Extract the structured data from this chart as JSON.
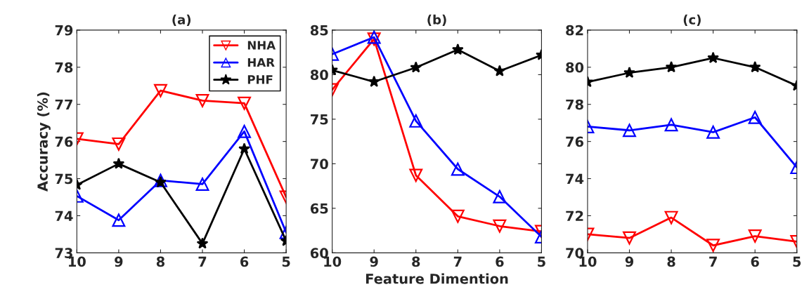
{
  "chart_data": [
    {
      "type": "line",
      "title": "(a)",
      "ylabel": "Accuracy (%)",
      "x": [
        10,
        9,
        8,
        7,
        6,
        5
      ],
      "xlim": [
        10,
        5
      ],
      "xticks": [
        10,
        9,
        8,
        7,
        6,
        5
      ],
      "ylim": [
        73,
        79
      ],
      "yticks": [
        73,
        74,
        75,
        76,
        77,
        78,
        79
      ],
      "grid": false,
      "legend": "top right",
      "series": [
        {
          "name": "NHA",
          "color": "#ff0000",
          "marker": "triangle_down",
          "values": [
            76.07,
            75.93,
            77.37,
            77.1,
            77.03,
            74.5
          ]
        },
        {
          "name": "HAR",
          "color": "#0000ff",
          "marker": "triangle",
          "values": [
            74.53,
            73.88,
            74.95,
            74.85,
            76.27,
            73.55
          ]
        },
        {
          "name": "PHF",
          "color": "#000000",
          "marker": "star",
          "values": [
            74.83,
            75.4,
            74.9,
            73.25,
            75.8,
            73.32
          ]
        }
      ]
    },
    {
      "type": "line",
      "title": "(b)",
      "xlabel": "Feature Dimention",
      "x": [
        10,
        9,
        8,
        7,
        6,
        5
      ],
      "xlim": [
        10,
        5
      ],
      "xticks": [
        10,
        9,
        8,
        7,
        6,
        5
      ],
      "ylim": [
        60,
        85
      ],
      "yticks": [
        60,
        65,
        70,
        75,
        80,
        85
      ],
      "grid": false,
      "series": [
        {
          "color": "#ff0000",
          "marker": "triangle_down",
          "values": [
            78.3,
            84.0,
            68.7,
            64.1,
            63.0,
            62.4
          ]
        },
        {
          "color": "#0000ff",
          "marker": "triangle",
          "values": [
            82.3,
            84.2,
            74.8,
            69.4,
            66.3,
            61.8
          ]
        },
        {
          "color": "#000000",
          "marker": "star",
          "values": [
            80.5,
            79.2,
            80.8,
            82.8,
            80.4,
            82.2
          ]
        }
      ]
    },
    {
      "type": "line",
      "title": "(c)",
      "x": [
        10,
        9,
        8,
        7,
        6,
        5
      ],
      "xlim": [
        10,
        5
      ],
      "xticks": [
        10,
        9,
        8,
        7,
        6,
        5
      ],
      "ylim": [
        70,
        82
      ],
      "yticks": [
        70,
        72,
        74,
        76,
        78,
        80,
        82
      ],
      "grid": false,
      "series": [
        {
          "color": "#ff0000",
          "marker": "triangle_down",
          "values": [
            71.0,
            70.8,
            71.9,
            70.4,
            70.9,
            70.6
          ]
        },
        {
          "color": "#0000ff",
          "marker": "triangle",
          "values": [
            76.8,
            76.6,
            76.9,
            76.5,
            77.3,
            74.6
          ]
        },
        {
          "color": "#000000",
          "marker": "star",
          "values": [
            79.2,
            79.7,
            80.0,
            80.5,
            80.0,
            79.0
          ]
        }
      ]
    }
  ]
}
